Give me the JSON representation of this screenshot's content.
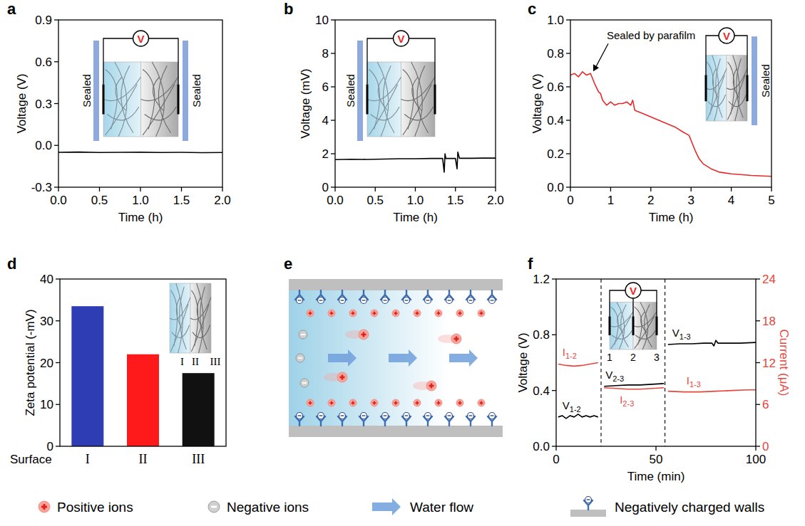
{
  "chart_data": [
    {
      "panel": "a",
      "type": "line",
      "x_label": "Time (h)",
      "y_label": "Voltage (V)",
      "xlim": [
        0,
        2
      ],
      "xticks": [
        {
          "value": 0,
          "label": "0.0"
        },
        {
          "value": 0.5,
          "label": "0.5"
        },
        {
          "value": 1,
          "label": "1.0"
        },
        {
          "value": 1.5,
          "label": "1.5"
        },
        {
          "value": 2,
          "label": "2.0"
        }
      ],
      "ylim": [
        -0.3,
        0.9
      ],
      "yticks": [
        -0.3,
        {
          "value": 0,
          "label": "0.0"
        },
        0.3,
        0.6,
        0.9
      ],
      "series": [
        {
          "color": "#000000",
          "x": [
            0,
            0.25,
            0.5,
            0.75,
            1,
            1.25,
            1.5,
            1.75,
            2
          ],
          "values": [
            -0.05,
            -0.048,
            -0.051,
            -0.05,
            -0.049,
            -0.051,
            -0.05,
            -0.052,
            -0.051
          ]
        }
      ],
      "inset": {
        "meter": "V",
        "sealed_left": "Sealed",
        "sealed_right": "Sealed"
      }
    },
    {
      "panel": "b",
      "type": "line",
      "x_label": "Time (h)",
      "y_label": "Voltage (mV)",
      "xlim": [
        0,
        2
      ],
      "xticks": [
        {
          "value": 0,
          "label": "0.0"
        },
        {
          "value": 0.5,
          "label": "0.5"
        },
        {
          "value": 1,
          "label": "1.0"
        },
        {
          "value": 1.5,
          "label": "1.5"
        },
        {
          "value": 2,
          "label": "2.0"
        }
      ],
      "ylim": [
        0,
        10
      ],
      "yticks": [
        0,
        2,
        4,
        6,
        8,
        10
      ],
      "series": [
        {
          "color": "#000000",
          "x": [
            0,
            0.2,
            0.4,
            0.6,
            0.8,
            1,
            1.2,
            1.34,
            1.36,
            1.37,
            1.38,
            1.4,
            1.5,
            1.52,
            1.53,
            1.55,
            1.7,
            1.85,
            2
          ],
          "values": [
            1.65,
            1.67,
            1.66,
            1.68,
            1.7,
            1.7,
            1.72,
            1.72,
            0.9,
            2.0,
            1.72,
            1.72,
            1.72,
            1.1,
            2.1,
            1.73,
            1.73,
            1.74,
            1.74
          ]
        }
      ],
      "inset": {
        "meter": "V",
        "sealed_left": "Sealed"
      }
    },
    {
      "panel": "c",
      "type": "line",
      "x_label": "Time (h)",
      "y_label": "Voltage (V)",
      "xlim": [
        0,
        5
      ],
      "xticks": [
        0,
        1,
        2,
        3,
        4,
        5
      ],
      "ylim": [
        0,
        1
      ],
      "yticks": [
        {
          "value": 0,
          "label": "0.0"
        },
        0.2,
        0.4,
        0.6,
        0.8,
        {
          "value": 1,
          "label": "1.0"
        }
      ],
      "series": [
        {
          "color": "#e62a2a",
          "x": [
            0,
            0.1,
            0.2,
            0.3,
            0.4,
            0.5,
            0.6,
            0.7,
            0.75,
            0.8,
            0.9,
            1,
            1.1,
            1.2,
            1.3,
            1.4,
            1.5,
            1.55,
            1.6,
            1.8,
            2,
            2.2,
            2.4,
            2.6,
            2.8,
            2.95,
            3,
            3.1,
            3.2,
            3.3,
            3.5,
            3.7,
            4,
            4.5,
            5
          ],
          "values": [
            0.67,
            0.68,
            0.66,
            0.69,
            0.67,
            0.68,
            0.62,
            0.57,
            0.56,
            0.52,
            0.49,
            0.51,
            0.49,
            0.5,
            0.5,
            0.51,
            0.49,
            0.52,
            0.46,
            0.44,
            0.42,
            0.4,
            0.38,
            0.36,
            0.33,
            0.31,
            0.28,
            0.22,
            0.17,
            0.14,
            0.11,
            0.09,
            0.08,
            0.07,
            0.065
          ]
        }
      ],
      "annotation": {
        "text": "Sealed by parafilm",
        "x": 0.55,
        "y": 0.68
      },
      "inset": {
        "meter": "V",
        "sealed_right": "Sealed"
      }
    },
    {
      "panel": "d",
      "type": "bar",
      "x_label": "Surface",
      "y_label": "Zeta potential (-mV)",
      "categories": [
        "I",
        "II",
        "III"
      ],
      "values": [
        33.5,
        22,
        17.5
      ],
      "colors": [
        "#2e3db3",
        "#fe1a1a",
        "#111111"
      ],
      "ylim": [
        0,
        40
      ],
      "yticks": [
        0,
        10,
        20,
        30,
        40
      ],
      "inset": {
        "surfaces": [
          "I",
          "II",
          "III"
        ]
      }
    },
    {
      "panel": "f",
      "type": "line",
      "x_label": "Time (min)",
      "y_label": "Voltage (V)",
      "y2_label": "Current (μA)",
      "xlim": [
        0,
        100
      ],
      "xticks": [
        0,
        50,
        100
      ],
      "ylim": [
        0,
        1.2
      ],
      "yticks": [
        {
          "value": 0,
          "label": "0.0"
        },
        0.4,
        0.8,
        1.2
      ],
      "y2lim": [
        0,
        24
      ],
      "y2ticks": [
        0,
        6,
        12,
        18,
        24
      ],
      "dividers": [
        22.5,
        54.5
      ],
      "series": [
        {
          "name": "V1-2",
          "color": "#000000",
          "x": [
            1,
            3,
            5,
            7,
            9,
            11,
            13,
            15,
            17,
            19,
            21
          ],
          "values": [
            0.21,
            0.22,
            0.2,
            0.22,
            0.21,
            0.23,
            0.21,
            0.22,
            0.21,
            0.22,
            0.21
          ]
        },
        {
          "name": "I1-2",
          "color": "#e8453c",
          "axis": "y2",
          "x": [
            1,
            5,
            9,
            13,
            17,
            21
          ],
          "values": [
            11.8,
            11.6,
            11.5,
            11.6,
            11.8,
            12.0
          ]
        },
        {
          "name": "V2-3",
          "color": "#000000",
          "x": [
            24,
            30,
            36,
            42,
            48,
            54
          ],
          "values": [
            0.43,
            0.435,
            0.44,
            0.44,
            0.445,
            0.45
          ]
        },
        {
          "name": "I2-3",
          "color": "#e8453c",
          "axis": "y2",
          "x": [
            24,
            30,
            36,
            42,
            48,
            54
          ],
          "values": [
            8.4,
            8.3,
            8.2,
            8.2,
            8.3,
            8.4
          ]
        },
        {
          "name": "V1-3",
          "color": "#000000",
          "x": [
            56,
            62,
            68,
            74,
            78,
            79,
            80,
            81,
            86,
            92,
            100
          ],
          "values": [
            0.73,
            0.735,
            0.735,
            0.74,
            0.74,
            0.72,
            0.76,
            0.74,
            0.74,
            0.74,
            0.745
          ]
        },
        {
          "name": "I1-3",
          "color": "#e8453c",
          "axis": "y2",
          "x": [
            56,
            64,
            72,
            80,
            88,
            96,
            100
          ],
          "values": [
            7.9,
            7.8,
            7.8,
            7.9,
            8.0,
            8.1,
            8.1
          ]
        }
      ],
      "inset": {
        "meter": "V",
        "electrodes": [
          "1",
          "2",
          "3"
        ]
      }
    }
  ],
  "diagram": {
    "panel": "e",
    "key": [
      "Positive ions",
      "Negative ions",
      "Water flow",
      "Negatively charged walls"
    ]
  }
}
